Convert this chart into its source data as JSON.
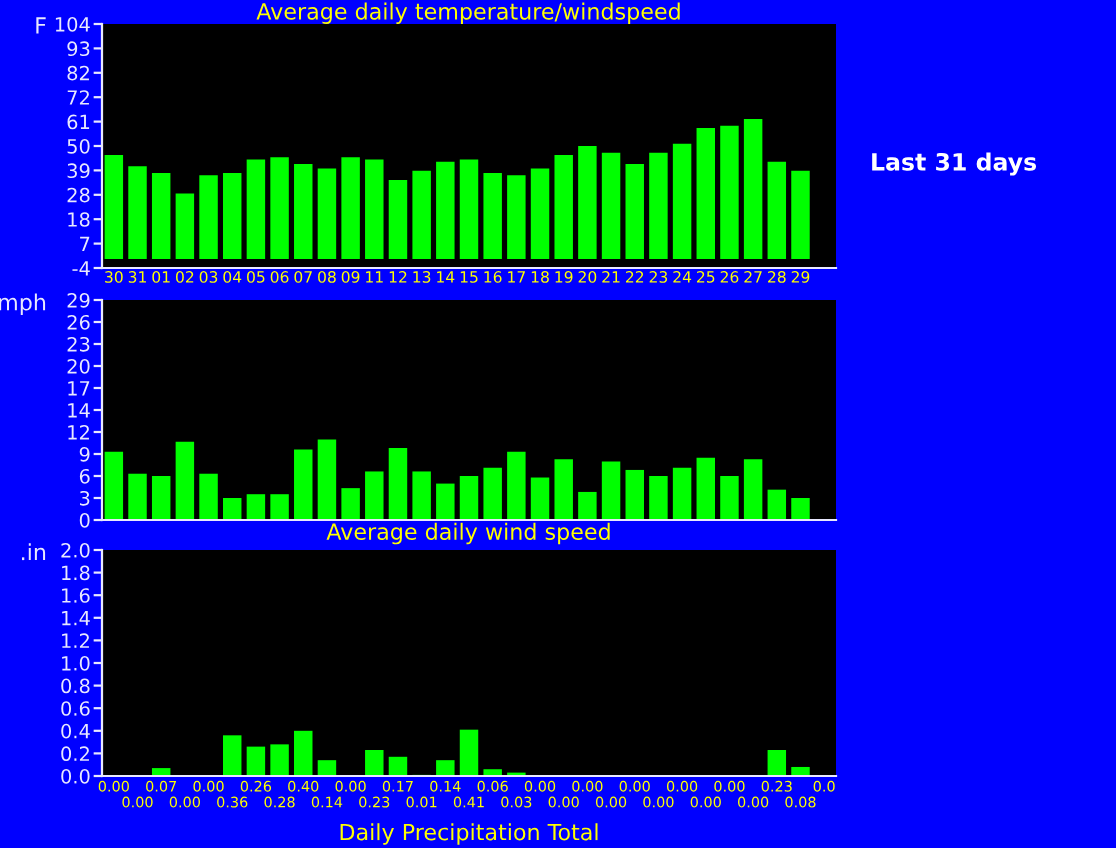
{
  "chart_data": [
    {
      "type": "bar",
      "title": "Average daily temperature/windspeed",
      "ylabel": "F",
      "categories": [
        "30",
        "31",
        "01",
        "02",
        "03",
        "04",
        "05",
        "06",
        "07",
        "08",
        "09",
        "11",
        "12",
        "13",
        "14",
        "15",
        "16",
        "17",
        "18",
        "19",
        "20",
        "21",
        "22",
        "23",
        "24",
        "25",
        "26",
        "27",
        "28",
        "29",
        null
      ],
      "series": [
        {
          "color": "#00ff00",
          "values": [
            46,
            41,
            38,
            29,
            37,
            38,
            44,
            45,
            42,
            40,
            45,
            44,
            35,
            39,
            43,
            44,
            38,
            37,
            40,
            46,
            50,
            47,
            42,
            47,
            51,
            58,
            59,
            62,
            43,
            39,
            null
          ]
        }
      ],
      "ylim": [
        -4,
        104
      ],
      "yticks": [
        -4,
        {
          "value": 6.8,
          "label": "7"
        },
        {
          "value": 17.6,
          "label": "18"
        },
        {
          "value": 28.4,
          "label": "28"
        },
        {
          "value": 39.2,
          "label": "39"
        },
        50,
        {
          "value": 60.8,
          "label": "61"
        },
        {
          "value": 71.6,
          "label": "72"
        },
        {
          "value": 82.4,
          "label": "82"
        },
        {
          "value": 93.2,
          "label": "93"
        },
        104
      ],
      "annotations": [
        "Last 31 days"
      ]
    },
    {
      "type": "bar",
      "ylabel": "mph",
      "xlabel": "Average daily wind speed",
      "categories": [
        null,
        null,
        null,
        null,
        null,
        null,
        null,
        null,
        null,
        null,
        null,
        null,
        null,
        null,
        null,
        null,
        null,
        null,
        null,
        null,
        null,
        null,
        null,
        null,
        null,
        null,
        null,
        null,
        null,
        null,
        null
      ],
      "series": [
        {
          "color": "#00ff00",
          "values": [
            9.0,
            6.1,
            5.8,
            10.3,
            6.1,
            2.9,
            3.4,
            3.4,
            9.3,
            10.6,
            4.2,
            6.4,
            9.5,
            6.4,
            4.8,
            5.8,
            6.9,
            9.0,
            5.6,
            8.0,
            3.7,
            7.7,
            6.6,
            5.8,
            6.9,
            8.2,
            5.8,
            8.0,
            4.0,
            2.9,
            null
          ]
        }
      ],
      "ylim": [
        0,
        29
      ],
      "yticks": [
        0,
        {
          "value": 2.9,
          "label": "3"
        },
        {
          "value": 5.8,
          "label": "6"
        },
        {
          "value": 8.7,
          "label": "9"
        },
        {
          "value": 11.6,
          "label": "12"
        },
        {
          "value": 14.5,
          "label": "14"
        },
        {
          "value": 17.4,
          "label": "17"
        },
        {
          "value": 20.3,
          "label": "20"
        },
        {
          "value": 23.2,
          "label": "23"
        },
        {
          "value": 26.1,
          "label": "26"
        },
        29
      ],
      "tick_labels": "y"
    },
    {
      "type": "bar",
      "ylabel": ".in",
      "xlabel": "Daily Precipitation Total",
      "categories": [
        null,
        null,
        null,
        null,
        null,
        null,
        null,
        null,
        null,
        null,
        null,
        null,
        null,
        null,
        null,
        null,
        null,
        null,
        null,
        null,
        null,
        null,
        null,
        null,
        null,
        null,
        null,
        null,
        null,
        null,
        null
      ],
      "series": [
        {
          "color": "#00ff00",
          "values": [
            0.0,
            0.0,
            0.07,
            0.0,
            0.0,
            0.36,
            0.26,
            0.28,
            0.4,
            0.14,
            0.0,
            0.23,
            0.17,
            0.01,
            0.14,
            0.41,
            0.06,
            0.03,
            0.0,
            0.0,
            0.0,
            0.0,
            0.0,
            0.0,
            0.0,
            0.0,
            0.0,
            0.0,
            0.23,
            0.08,
            0.0
          ],
          "value_labels": [
            "0.00",
            "0.00",
            "0.07",
            "0.00",
            "0.00",
            "0.36",
            "0.26",
            "0.28",
            "0.40",
            "0.14",
            "0.00",
            "0.23",
            "0.17",
            "0.01",
            "0.14",
            "0.41",
            "0.06",
            "0.03",
            "0.00",
            "0.00",
            "0.00",
            "0.00",
            "0.00",
            "0.00",
            "0.00",
            "0.00",
            "0.00",
            "0.00",
            "0.23",
            "0.08",
            "0.0"
          ]
        }
      ],
      "ylim": [
        0,
        2
      ],
      "yticks": [
        {
          "value": 0,
          "label": "0.0"
        },
        {
          "value": 0.2,
          "label": "0.2"
        },
        {
          "value": 0.4,
          "label": "0.4"
        },
        {
          "value": 0.6,
          "label": "0.6"
        },
        {
          "value": 0.8,
          "label": "0.8"
        },
        {
          "value": 1.0,
          "label": "1.0"
        },
        {
          "value": 1.2,
          "label": "1.2"
        },
        {
          "value": 1.4,
          "label": "1.4"
        },
        {
          "value": 1.6,
          "label": "1.6"
        },
        {
          "value": 1.8,
          "label": "1.8"
        },
        {
          "value": 2.0,
          "label": "2.0"
        }
      ],
      "tick_labels": "y"
    }
  ]
}
